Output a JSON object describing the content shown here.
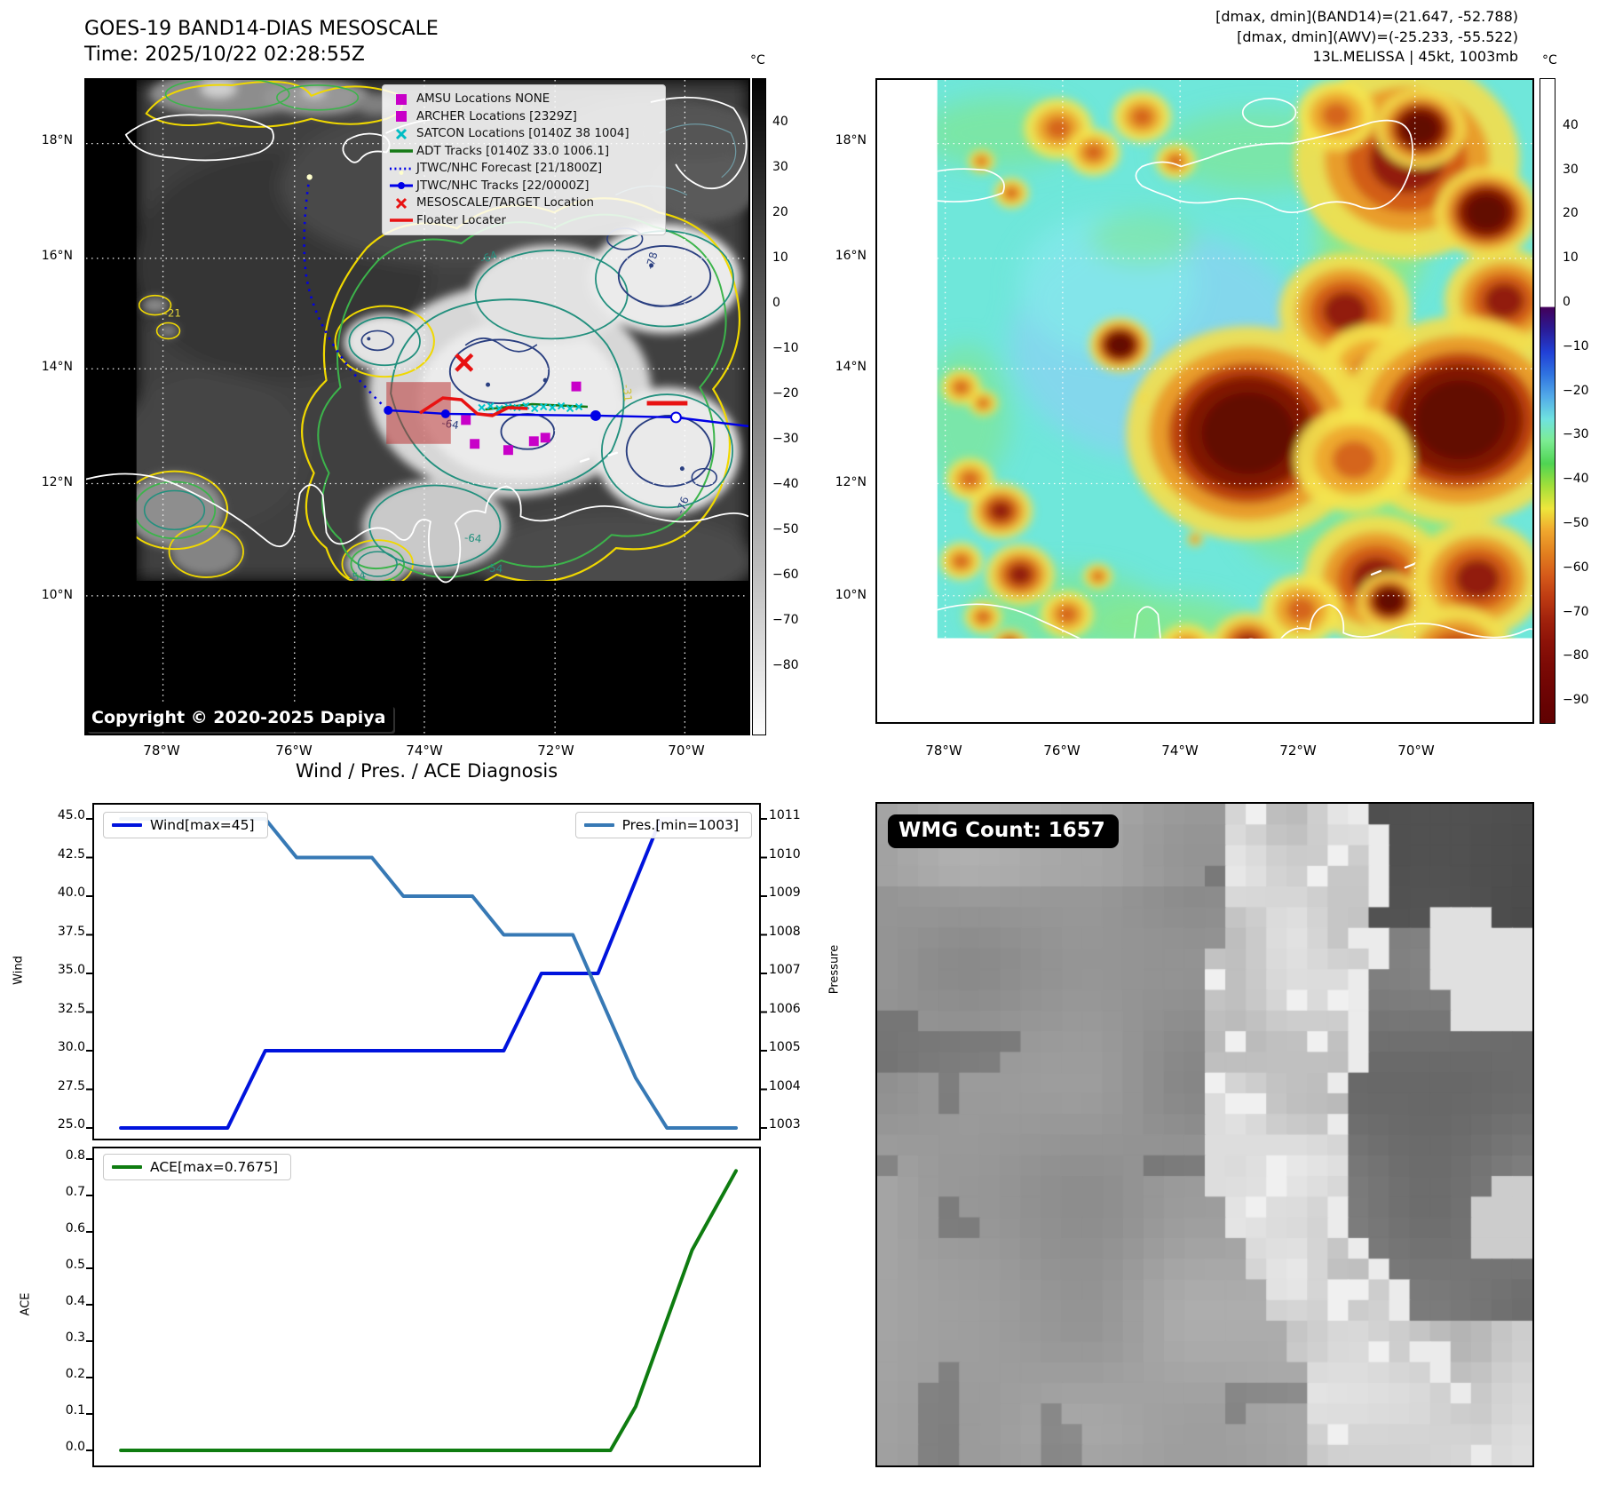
{
  "header": {
    "title_line1": "GOES-19 BAND14-DIAS MESOSCALE",
    "title_line2": "Time: 2025/10/22 02:28:55Z",
    "info_line1": "[dmax, dmin](BAND14)=(21.647, -52.788)",
    "info_line2": "[dmax, dmin](AWV)=(-25.233, -55.522)",
    "info_line3": "13L.MELISSA | 45kt, 1003mb"
  },
  "left_map": {
    "copyright": "Copyright © 2020-2025 Dapiya",
    "lat_ticks": [
      "18°N",
      "16°N",
      "14°N",
      "12°N",
      "10°N"
    ],
    "lon_ticks": [
      "78°W",
      "76°W",
      "74°W",
      "72°W",
      "70°W"
    ],
    "colorbar": {
      "unit": "°C",
      "ticks": [
        40,
        30,
        20,
        10,
        0,
        -10,
        -20,
        -30,
        -40,
        -50,
        -60,
        -70,
        -80
      ]
    },
    "legend": [
      {
        "label": "AMSU Locations NONE",
        "marker": "square",
        "color": "#c800c8"
      },
      {
        "label": "ARCHER Locations [2329Z]",
        "marker": "square",
        "color": "#c800c8"
      },
      {
        "label": "SATCON Locations [0140Z 38 1004]",
        "marker": "x",
        "color": "#00bcc4"
      },
      {
        "label": "ADT Tracks [0140Z 33.0 1006.1]",
        "marker": "line",
        "color": "#157a15"
      },
      {
        "label": "JTWC/NHC Forecast [21/1800Z]",
        "marker": "dotted",
        "color": "#0000e8"
      },
      {
        "label": "JTWC/NHC Tracks [22/0000Z]",
        "marker": "linedot",
        "color": "#0000e8"
      },
      {
        "label": "MESOSCALE/TARGET Location",
        "marker": "x",
        "color": "#e81212"
      },
      {
        "label": "Floater Locater",
        "marker": "line",
        "color": "#e81212"
      }
    ],
    "contour_labels": [
      {
        "text": "-64",
        "color": "#23907e"
      },
      {
        "text": "-78",
        "color": "#2a3f80"
      },
      {
        "text": "-31",
        "color": "#cfc22e"
      },
      {
        "text": "-64",
        "color": "#2a3f80"
      },
      {
        "text": "-76",
        "color": "#2a3f80"
      },
      {
        "text": "-54",
        "color": "#23907e"
      },
      {
        "text": "-64",
        "color": "#23907e"
      },
      {
        "text": "-21",
        "color": "#e0d23a"
      },
      {
        "text": "-54",
        "color": "#23907e"
      }
    ]
  },
  "right_map": {
    "lat_ticks": [
      "18°N",
      "16°N",
      "14°N",
      "12°N",
      "10°N"
    ],
    "lon_ticks": [
      "78°W",
      "76°W",
      "74°W",
      "72°W",
      "70°W"
    ],
    "colorbar": {
      "unit": "°C",
      "ticks": [
        40,
        30,
        20,
        10,
        0,
        -10,
        -20,
        -30,
        -40,
        -50,
        -60,
        -70,
        -80,
        -90
      ]
    }
  },
  "wmg": {
    "label": "WMG Count: 1657"
  },
  "chart_data": [
    {
      "type": "line",
      "title": "Wind / Pres. / ACE Diagnosis",
      "ylabel_left": "Wind",
      "ylabel_right": "Pressure",
      "yticks_left": [
        "45.0",
        "42.5",
        "40.0",
        "37.5",
        "35.0",
        "32.5",
        "30.0",
        "27.5",
        "25.0"
      ],
      "yticks_right": [
        "1011",
        "1010",
        "1009",
        "1008",
        "1007",
        "1006",
        "1005",
        "1004",
        "1003"
      ],
      "ylim_left": [
        25,
        45
      ],
      "ylim_right": [
        1003,
        1011
      ],
      "series": [
        {
          "name": "Wind[max=45]",
          "color": "#0013dd",
          "axis": "left",
          "points": [
            [
              0.02,
              25
            ],
            [
              0.19,
              25
            ],
            [
              0.25,
              30
            ],
            [
              0.63,
              30
            ],
            [
              0.69,
              35
            ],
            [
              0.78,
              35
            ],
            [
              0.88,
              45
            ]
          ],
          "faded_tail": [
            [
              0.88,
              45
            ],
            [
              1.0,
              45
            ]
          ],
          "faded_color": "#c6c6f8"
        },
        {
          "name": "Pres.[min=1003]",
          "color": "#3779b5",
          "axis": "right",
          "points": [
            [
              0.02,
              1011
            ],
            [
              0.25,
              1011
            ],
            [
              0.3,
              1010
            ],
            [
              0.42,
              1010
            ],
            [
              0.47,
              1009
            ],
            [
              0.58,
              1009
            ],
            [
              0.63,
              1008
            ],
            [
              0.74,
              1008
            ],
            [
              0.84,
              1004.3
            ],
            [
              0.89,
              1003
            ],
            [
              1.0,
              1003
            ]
          ]
        }
      ]
    },
    {
      "type": "line",
      "ylabel_left": "ACE",
      "yticks_left": [
        "0.8",
        "0.7",
        "0.6",
        "0.5",
        "0.4",
        "0.3",
        "0.2",
        "0.1",
        "0.0"
      ],
      "ylim_left": [
        0.0,
        0.8
      ],
      "series": [
        {
          "name": "ACE[max=0.7675]",
          "color": "#0e7c10",
          "axis": "left",
          "points": [
            [
              0.02,
              0
            ],
            [
              0.8,
              0
            ],
            [
              0.84,
              0.12
            ],
            [
              0.93,
              0.55
            ],
            [
              1.0,
              0.7675
            ]
          ]
        }
      ]
    }
  ]
}
